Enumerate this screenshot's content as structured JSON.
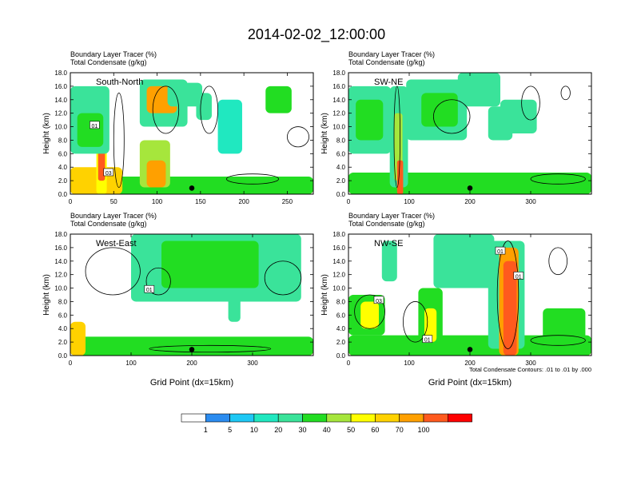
{
  "title": "2014-02-02_12:00:00",
  "colors": {
    "scale": [
      "#ffffff",
      "#2b8cf0",
      "#1ec8f5",
      "#20e8c0",
      "#3ae39a",
      "#22dd22",
      "#a6e63c",
      "#ffff00",
      "#ffd200",
      "#ffa000",
      "#ff5a1e",
      "#ff0000"
    ],
    "background": "#ffffff",
    "contour": "#000000"
  },
  "colorbar": {
    "labels": [
      "1",
      "5",
      "10",
      "20",
      "30",
      "40",
      "50",
      "60",
      "70",
      "100"
    ]
  },
  "panels": [
    {
      "id": "south-north",
      "label": "South-North",
      "subtitle1": "Boundary Layer Tracer   (%)",
      "subtitle2": "Total Condensate   (g/kg)",
      "ylabel": "Height (km)",
      "xlabel": "",
      "note": "",
      "xlim": [
        0,
        280
      ],
      "ylim": [
        0,
        18
      ],
      "xticks": [
        0,
        50,
        100,
        150,
        200,
        250
      ],
      "xtick_labels": [
        "0",
        "50",
        "100",
        "150",
        "200",
        "250"
      ],
      "yticks": [
        0,
        2,
        4,
        6,
        8,
        10,
        12,
        14,
        16,
        18
      ],
      "ytick_labels": [
        "0.0",
        "2.0",
        "4.0",
        "6.0",
        "8.0",
        "10.0",
        "12.0",
        "14.0",
        "16.0",
        "18.0"
      ],
      "marker_x": 140,
      "contour_labels": [
        {
          "text": "01",
          "x": 28,
          "y": 10.2
        },
        {
          "text": "03",
          "x": 44,
          "y": 3.2
        }
      ],
      "blobs": [
        {
          "x": 0,
          "y": 0,
          "w": 280,
          "h": 1.3,
          "v": 72
        },
        {
          "x": 0,
          "y": 0,
          "w": 280,
          "h": 2.6,
          "v": 22
        },
        {
          "x": 0,
          "y": 0,
          "w": 60,
          "h": 4,
          "v": 50
        },
        {
          "x": 30,
          "y": 0,
          "w": 12,
          "h": 14,
          "v": 48
        },
        {
          "x": 32,
          "y": 2,
          "w": 8,
          "h": 10,
          "v": 70
        },
        {
          "x": 0,
          "y": 6,
          "w": 45,
          "h": 10,
          "v": 12
        },
        {
          "x": 8,
          "y": 7,
          "w": 30,
          "h": 5,
          "v": 25
        },
        {
          "x": 80,
          "y": 10,
          "w": 55,
          "h": 7,
          "v": 18
        },
        {
          "x": 88,
          "y": 12,
          "w": 35,
          "h": 4,
          "v": 60
        },
        {
          "x": 80,
          "y": 1,
          "w": 35,
          "h": 7,
          "v": 32
        },
        {
          "x": 88,
          "y": 1,
          "w": 22,
          "h": 4,
          "v": 65
        },
        {
          "x": 112,
          "y": 13,
          "w": 40,
          "h": 3.5,
          "v": 10
        },
        {
          "x": 145,
          "y": 11,
          "w": 18,
          "h": 4,
          "v": 10
        },
        {
          "x": 170,
          "y": 6,
          "w": 28,
          "h": 8,
          "v": 8
        },
        {
          "x": 225,
          "y": 12,
          "w": 30,
          "h": 4,
          "v": 22
        }
      ],
      "contours": [
        {
          "x": 50,
          "y": 1,
          "w": 12,
          "h": 14
        },
        {
          "x": 95,
          "y": 9,
          "w": 30,
          "h": 7
        },
        {
          "x": 150,
          "y": 9,
          "w": 20,
          "h": 7
        },
        {
          "x": 250,
          "y": 7,
          "w": 25,
          "h": 3
        },
        {
          "x": 180,
          "y": 1.5,
          "w": 60,
          "h": 1.5
        }
      ]
    },
    {
      "id": "sw-ne",
      "label": "SW-NE",
      "subtitle1": "Boundary Layer Tracer   (%)",
      "subtitle2": "Total Condensate   (g/kg)",
      "ylabel": "Height (km)",
      "xlabel": "",
      "note": "",
      "xlim": [
        0,
        400
      ],
      "ylim": [
        0,
        18
      ],
      "xticks": [
        0,
        100,
        200,
        300
      ],
      "xtick_labels": [
        "0",
        "100",
        "200",
        "300"
      ],
      "yticks": [
        0,
        2,
        4,
        6,
        8,
        10,
        12,
        14,
        16,
        18
      ],
      "ytick_labels": [
        "0.0",
        "2.0",
        "4.0",
        "6.0",
        "8.0",
        "10.0",
        "12.0",
        "14.0",
        "16.0",
        "18.0"
      ],
      "marker_x": 200,
      "contour_labels": [],
      "blobs": [
        {
          "x": 0,
          "y": 0,
          "w": 400,
          "h": 1.4,
          "v": 72
        },
        {
          "x": 0,
          "y": 0,
          "w": 400,
          "h": 3.2,
          "v": 22
        },
        {
          "x": 0,
          "y": 6,
          "w": 70,
          "h": 10,
          "v": 12
        },
        {
          "x": 12,
          "y": 8,
          "w": 45,
          "h": 6,
          "v": 28
        },
        {
          "x": 68,
          "y": 1,
          "w": 30,
          "h": 15,
          "v": 15
        },
        {
          "x": 75,
          "y": 2,
          "w": 14,
          "h": 10,
          "v": 30
        },
        {
          "x": 80,
          "y": 0,
          "w": 10,
          "h": 5,
          "v": 70
        },
        {
          "x": 95,
          "y": 8,
          "w": 100,
          "h": 9,
          "v": 15
        },
        {
          "x": 120,
          "y": 10,
          "w": 60,
          "h": 5,
          "v": 25
        },
        {
          "x": 180,
          "y": 13,
          "w": 70,
          "h": 5,
          "v": 18
        },
        {
          "x": 230,
          "y": 8,
          "w": 40,
          "h": 5,
          "v": 10
        },
        {
          "x": 250,
          "y": 9,
          "w": 60,
          "h": 5,
          "v": 14
        }
      ],
      "contours": [
        {
          "x": 75,
          "y": 1,
          "w": 10,
          "h": 15
        },
        {
          "x": 140,
          "y": 9,
          "w": 60,
          "h": 5
        },
        {
          "x": 285,
          "y": 11,
          "w": 30,
          "h": 5
        },
        {
          "x": 350,
          "y": 14,
          "w": 15,
          "h": 2
        },
        {
          "x": 300,
          "y": 1.5,
          "w": 90,
          "h": 1.5
        }
      ]
    },
    {
      "id": "west-east",
      "label": "West-East",
      "subtitle1": "Boundary Layer Tracer   (%)",
      "subtitle2": "Total Condensate   (g/kg)",
      "ylabel": "Height (km)",
      "xlabel": "Grid Point (dx=15km)",
      "note": "",
      "xlim": [
        0,
        400
      ],
      "ylim": [
        0,
        18
      ],
      "xticks": [
        0,
        100,
        200,
        300
      ],
      "xtick_labels": [
        "0",
        "100",
        "200",
        "300"
      ],
      "yticks": [
        0,
        2,
        4,
        6,
        8,
        10,
        12,
        14,
        16,
        18
      ],
      "ytick_labels": [
        "0.0",
        "2.0",
        "4.0",
        "6.0",
        "8.0",
        "10.0",
        "12.0",
        "14.0",
        "16.0",
        "18.0"
      ],
      "marker_x": 200,
      "contour_labels": [
        {
          "text": "01",
          "x": 130,
          "y": 9.8
        }
      ],
      "blobs": [
        {
          "x": 0,
          "y": 0,
          "w": 400,
          "h": 1.2,
          "v": 72
        },
        {
          "x": 0,
          "y": 0,
          "w": 400,
          "h": 2.8,
          "v": 22
        },
        {
          "x": 0,
          "y": 0,
          "w": 25,
          "h": 5,
          "v": 55
        },
        {
          "x": 100,
          "y": 8,
          "w": 280,
          "h": 10,
          "v": 15
        },
        {
          "x": 150,
          "y": 10,
          "w": 160,
          "h": 7,
          "v": 28
        },
        {
          "x": 260,
          "y": 5,
          "w": 20,
          "h": 4,
          "v": 10
        }
      ],
      "contours": [
        {
          "x": 25,
          "y": 9,
          "w": 90,
          "h": 7
        },
        {
          "x": 125,
          "y": 9,
          "w": 40,
          "h": 4
        },
        {
          "x": 320,
          "y": 9,
          "w": 60,
          "h": 5
        },
        {
          "x": 130,
          "y": 0.5,
          "w": 200,
          "h": 1
        }
      ]
    },
    {
      "id": "nw-se",
      "label": "NW-SE",
      "subtitle1": "Boundary Layer Tracer   (%)",
      "subtitle2": "Total Condensate   (g/kg)",
      "ylabel": "Height (km)",
      "xlabel": "Grid Point (dx=15km)",
      "note": "Total Condensate Contours: .01 to .01 by .000",
      "xlim": [
        0,
        400
      ],
      "ylim": [
        0,
        18
      ],
      "xticks": [
        0,
        100,
        200,
        300
      ],
      "xtick_labels": [
        "0",
        "100",
        "200",
        "300"
      ],
      "yticks": [
        0,
        2,
        4,
        6,
        8,
        10,
        12,
        14,
        16,
        18
      ],
      "ytick_labels": [
        "0.0",
        "2.0",
        "4.0",
        "6.0",
        "8.0",
        "10.0",
        "12.0",
        "14.0",
        "16.0",
        "18.0"
      ],
      "marker_x": 200,
      "contour_labels": [
        {
          "text": "03",
          "x": 50,
          "y": 8.2
        },
        {
          "text": "01",
          "x": 250,
          "y": 15.5
        },
        {
          "text": "01",
          "x": 280,
          "y": 11.8
        },
        {
          "text": "01",
          "x": 130,
          "y": 2.4
        }
      ],
      "blobs": [
        {
          "x": 0,
          "y": 0,
          "w": 400,
          "h": 1.3,
          "v": 72
        },
        {
          "x": 0,
          "y": 0,
          "w": 400,
          "h": 3,
          "v": 22
        },
        {
          "x": 0,
          "y": 3,
          "w": 60,
          "h": 6,
          "v": 25
        },
        {
          "x": 20,
          "y": 4,
          "w": 30,
          "h": 4,
          "v": 45
        },
        {
          "x": 115,
          "y": 1,
          "w": 40,
          "h": 9,
          "v": 22
        },
        {
          "x": 125,
          "y": 2,
          "w": 20,
          "h": 5,
          "v": 45
        },
        {
          "x": 140,
          "y": 10,
          "w": 100,
          "h": 8,
          "v": 15
        },
        {
          "x": 230,
          "y": 1,
          "w": 60,
          "h": 16,
          "v": 18
        },
        {
          "x": 248,
          "y": 0,
          "w": 32,
          "h": 16,
          "v": 68
        },
        {
          "x": 255,
          "y": 0,
          "w": 22,
          "h": 14,
          "v": 85
        },
        {
          "x": 55,
          "y": 11,
          "w": 25,
          "h": 6,
          "v": 12
        },
        {
          "x": 320,
          "y": 1,
          "w": 70,
          "h": 6,
          "v": 20
        }
      ],
      "contours": [
        {
          "x": 10,
          "y": 4,
          "w": 50,
          "h": 5
        },
        {
          "x": 245,
          "y": 1,
          "w": 35,
          "h": 16
        },
        {
          "x": 90,
          "y": 2,
          "w": 40,
          "h": 6
        },
        {
          "x": 330,
          "y": 12,
          "w": 30,
          "h": 4
        },
        {
          "x": 300,
          "y": 1.5,
          "w": 90,
          "h": 1.5
        }
      ]
    }
  ],
  "chart_data": [
    {
      "type": "heatmap",
      "title": "2014-02-02_12:00:00",
      "label": "South-North",
      "subtitle": "Boundary Layer Tracer (%) / Total Condensate (g/kg)",
      "xlabel": "",
      "ylabel": "Height (km)",
      "xlim": [
        0,
        280
      ],
      "ylim": [
        0,
        18
      ],
      "colorbar_levels": [
        1,
        5,
        10,
        20,
        30,
        40,
        50,
        60,
        70,
        100
      ]
    },
    {
      "type": "heatmap",
      "title": "2014-02-02_12:00:00",
      "label": "SW-NE",
      "subtitle": "Boundary Layer Tracer (%) / Total Condensate (g/kg)",
      "xlabel": "",
      "ylabel": "Height (km)",
      "xlim": [
        0,
        400
      ],
      "ylim": [
        0,
        18
      ],
      "colorbar_levels": [
        1,
        5,
        10,
        20,
        30,
        40,
        50,
        60,
        70,
        100
      ]
    },
    {
      "type": "heatmap",
      "title": "2014-02-02_12:00:00",
      "label": "West-East",
      "subtitle": "Boundary Layer Tracer (%) / Total Condensate (g/kg)",
      "xlabel": "Grid Point (dx=15km)",
      "ylabel": "Height (km)",
      "xlim": [
        0,
        400
      ],
      "ylim": [
        0,
        18
      ],
      "colorbar_levels": [
        1,
        5,
        10,
        20,
        30,
        40,
        50,
        60,
        70,
        100
      ]
    },
    {
      "type": "heatmap",
      "title": "2014-02-02_12:00:00",
      "label": "NW-SE",
      "subtitle": "Boundary Layer Tracer (%) / Total Condensate (g/kg)",
      "xlabel": "Grid Point (dx=15km)",
      "ylabel": "Height (km)",
      "xlim": [
        0,
        400
      ],
      "ylim": [
        0,
        18
      ],
      "colorbar_levels": [
        1,
        5,
        10,
        20,
        30,
        40,
        50,
        60,
        70,
        100
      ]
    }
  ]
}
